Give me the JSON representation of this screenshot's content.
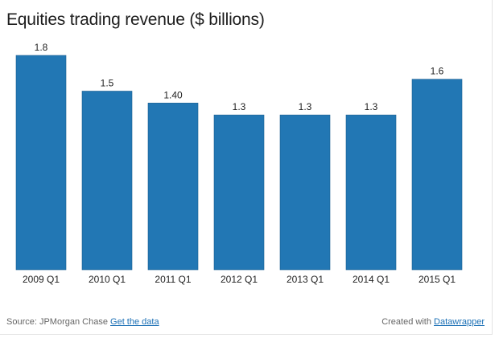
{
  "header": {
    "title": "Equities trading revenue ($ billions)"
  },
  "footer": {
    "source_text": "Source: JPMorgan Chase",
    "data_link": "Get the data",
    "created_text": "Created with",
    "credit_link": "Datawrapper"
  },
  "chart_data": {
    "type": "bar",
    "title": "Equities trading revenue ($ billions)",
    "categories": [
      "2009 Q1",
      "2010 Q1",
      "2011 Q1",
      "2012 Q1",
      "2013 Q1",
      "2014 Q1",
      "2015 Q1"
    ],
    "values": [
      1.8,
      1.5,
      1.4,
      1.3,
      1.3,
      1.3,
      1.6
    ],
    "value_labels": [
      "1.8",
      "1.5",
      "1.40",
      "1.3",
      "1.3",
      "1.3",
      "1.6"
    ],
    "ylim": [
      0,
      1.8
    ],
    "grid": false,
    "legend": "none",
    "bar_color": "#2277b4",
    "xlabel": "",
    "ylabel": ""
  }
}
